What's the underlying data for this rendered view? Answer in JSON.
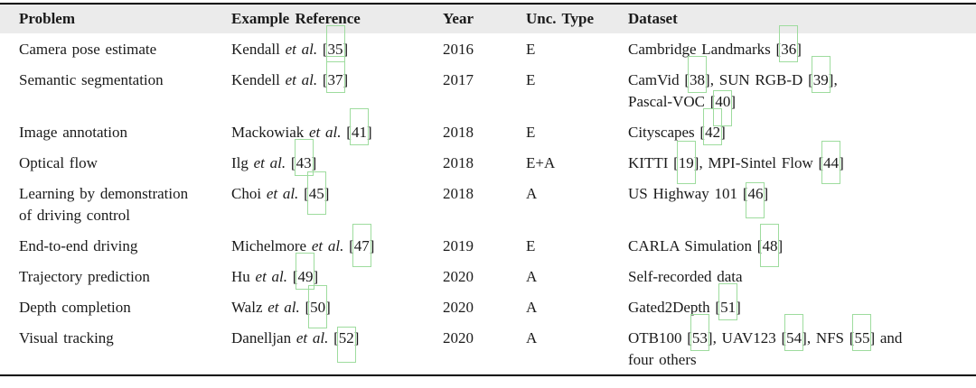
{
  "colors": {
    "citation_box_green": "#9edc9e",
    "header_background": "#ebebeb",
    "text": "#1a1a1a"
  },
  "table": {
    "headers": [
      "Problem",
      "Example Reference",
      "Year",
      "Unc. Type",
      "Dataset"
    ],
    "rows": [
      {
        "problem": [
          {
            "t": "Camera pose estimate"
          }
        ],
        "reference": [
          {
            "t": "Kendall "
          },
          {
            "i": "et al."
          },
          {
            "t": " "
          },
          {
            "cite": "35",
            "box": "up"
          }
        ],
        "year": "2016",
        "unc": "E",
        "dataset": [
          {
            "t": "Cambridge Landmarks "
          },
          {
            "cite": "36",
            "box": "up"
          }
        ]
      },
      {
        "problem": [
          {
            "t": "Semantic segmentation"
          }
        ],
        "reference": [
          {
            "t": "Kendell "
          },
          {
            "i": "et al."
          },
          {
            "t": " "
          },
          {
            "cite": "37",
            "box": "up"
          }
        ],
        "year": "2017",
        "unc": "E",
        "dataset": [
          {
            "t": "CamVid "
          },
          {
            "cite": "38",
            "box": "up"
          },
          {
            "t": ", SUN RGB-D "
          },
          {
            "cite": "39",
            "box": "up"
          },
          {
            "t": ","
          },
          {
            "br": true
          },
          {
            "t": "Pascal-VOC "
          },
          {
            "cite": "40",
            "box": "down"
          }
        ]
      },
      {
        "problem": [
          {
            "t": "Image annotation"
          }
        ],
        "reference": [
          {
            "t": "Mackowiak "
          },
          {
            "i": "et al."
          },
          {
            "t": " "
          },
          {
            "cite": "41",
            "box": "up"
          }
        ],
        "year": "2018",
        "unc": "E",
        "dataset": [
          {
            "t": "Cityscapes "
          },
          {
            "cite": "42",
            "box": "up"
          }
        ]
      },
      {
        "problem": [
          {
            "t": "Optical flow"
          }
        ],
        "reference": [
          {
            "t": "Ilg "
          },
          {
            "i": "et al."
          },
          {
            "t": " "
          },
          {
            "cite": "43",
            "box": "up"
          }
        ],
        "year": "2018",
        "unc": "E+A",
        "dataset": [
          {
            "t": "KITTI "
          },
          {
            "cite": "19",
            "box": "both"
          },
          {
            "t": ", MPI-Sintel Flow "
          },
          {
            "cite": "44",
            "box": "both"
          }
        ]
      },
      {
        "problem": [
          {
            "t": "Learning by demonstration"
          },
          {
            "br": true
          },
          {
            "t": "of driving control"
          }
        ],
        "reference": [
          {
            "t": "Choi "
          },
          {
            "i": "et al."
          },
          {
            "t": " "
          },
          {
            "cite": "45",
            "box": "both"
          }
        ],
        "year": "2018",
        "unc": "A",
        "dataset": [
          {
            "t": "US Highway 101 "
          },
          {
            "cite": "46",
            "box": "down"
          }
        ]
      },
      {
        "problem": [
          {
            "t": "End-to-end driving"
          }
        ],
        "reference": [
          {
            "t": "Michelmore "
          },
          {
            "i": "et al."
          },
          {
            "t": " "
          },
          {
            "cite": "47",
            "box": "both"
          }
        ],
        "year": "2019",
        "unc": "E",
        "dataset": [
          {
            "t": "CARLA Simulation "
          },
          {
            "cite": "48",
            "box": "both"
          }
        ]
      },
      {
        "problem": [
          {
            "t": "Trajectory prediction"
          }
        ],
        "reference": [
          {
            "t": "Hu "
          },
          {
            "i": "et al."
          },
          {
            "t": " "
          },
          {
            "cite": "49",
            "box": "up"
          }
        ],
        "year": "2020",
        "unc": "A",
        "dataset": [
          {
            "t": "Self-recorded data"
          }
        ]
      },
      {
        "problem": [
          {
            "t": "Depth completion"
          }
        ],
        "reference": [
          {
            "t": "Walz "
          },
          {
            "i": "et al."
          },
          {
            "t": " "
          },
          {
            "cite": "50",
            "box": "both"
          }
        ],
        "year": "2020",
        "unc": "A",
        "dataset": [
          {
            "t": "Gated2Depth "
          },
          {
            "cite": "51",
            "box": "up"
          }
        ]
      },
      {
        "problem": [
          {
            "t": "Visual tracking"
          }
        ],
        "reference": [
          {
            "t": "Danelljan "
          },
          {
            "i": "et al."
          },
          {
            "t": " "
          },
          {
            "cite": "52",
            "box": "down"
          }
        ],
        "year": "2020",
        "unc": "A",
        "dataset": [
          {
            "t": "OTB100 "
          },
          {
            "cite": "53",
            "box": "up"
          },
          {
            "t": ", UAV123 "
          },
          {
            "cite": "54",
            "box": "up"
          },
          {
            "t": ", NFS "
          },
          {
            "cite": "55",
            "box": "up"
          },
          {
            "t": " and"
          },
          {
            "br": true
          },
          {
            "t": "four others"
          }
        ]
      }
    ]
  }
}
